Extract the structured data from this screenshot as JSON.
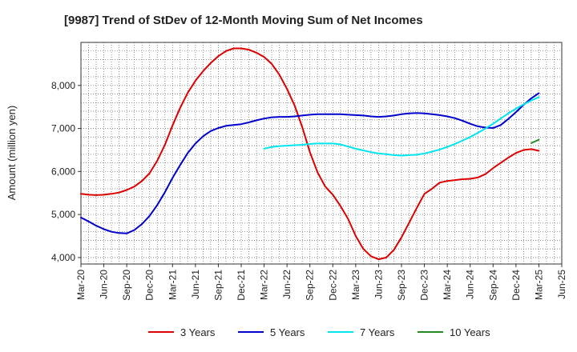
{
  "chart_data": {
    "type": "line",
    "title": "[9987]  Trend of StDev of 12-Month Moving Sum of Net Incomes",
    "xlabel": "",
    "ylabel": "Amount (million yen)",
    "ylim": [
      3850,
      9000
    ],
    "yticks": [
      4000,
      5000,
      6000,
      7000,
      8000
    ],
    "ytick_labels": [
      "4,000",
      "5,000",
      "6,000",
      "7,000",
      "8,000"
    ],
    "xticks": [
      "Mar-20",
      "Jun-20",
      "Sep-20",
      "Dec-20",
      "Mar-21",
      "Jun-21",
      "Sep-21",
      "Dec-21",
      "Mar-22",
      "Jun-22",
      "Sep-22",
      "Dec-22",
      "Mar-23",
      "Jun-23",
      "Sep-23",
      "Dec-23",
      "Mar-24",
      "Jun-24",
      "Sep-24",
      "Dec-24",
      "Mar-25",
      "Jun-25"
    ],
    "grid": true,
    "legend_position": "bottom",
    "series": [
      {
        "name": "3 Years",
        "color": "#dd0000",
        "points": [
          [
            "Mar-20",
            5480
          ],
          [
            "Apr-20",
            5460
          ],
          [
            "May-20",
            5450
          ],
          [
            "Jun-20",
            5460
          ],
          [
            "Jul-20",
            5480
          ],
          [
            "Aug-20",
            5510
          ],
          [
            "Sep-20",
            5570
          ],
          [
            "Oct-20",
            5650
          ],
          [
            "Nov-20",
            5780
          ],
          [
            "Dec-20",
            5960
          ],
          [
            "Jan-21",
            6250
          ],
          [
            "Feb-21",
            6620
          ],
          [
            "Mar-21",
            7070
          ],
          [
            "Apr-21",
            7480
          ],
          [
            "May-21",
            7830
          ],
          [
            "Jun-21",
            8110
          ],
          [
            "Jul-21",
            8330
          ],
          [
            "Aug-21",
            8520
          ],
          [
            "Sep-21",
            8680
          ],
          [
            "Oct-21",
            8800
          ],
          [
            "Nov-21",
            8860
          ],
          [
            "Dec-21",
            8860
          ],
          [
            "Jan-22",
            8830
          ],
          [
            "Feb-22",
            8760
          ],
          [
            "Mar-22",
            8660
          ],
          [
            "Apr-22",
            8500
          ],
          [
            "May-22",
            8250
          ],
          [
            "Jun-22",
            7920
          ],
          [
            "Jul-22",
            7530
          ],
          [
            "Aug-22",
            7030
          ],
          [
            "Sep-22",
            6450
          ],
          [
            "Oct-22",
            5980
          ],
          [
            "Nov-22",
            5650
          ],
          [
            "Dec-22",
            5460
          ],
          [
            "Jan-23",
            5200
          ],
          [
            "Feb-23",
            4900
          ],
          [
            "Mar-23",
            4500
          ],
          [
            "Apr-23",
            4200
          ],
          [
            "May-23",
            4030
          ],
          [
            "Jun-23",
            3960
          ],
          [
            "Jul-23",
            4000
          ],
          [
            "Aug-23",
            4180
          ],
          [
            "Sep-23",
            4470
          ],
          [
            "Oct-23",
            4810
          ],
          [
            "Nov-23",
            5150
          ],
          [
            "Dec-23",
            5480
          ],
          [
            "Jan-24",
            5600
          ],
          [
            "Feb-24",
            5740
          ],
          [
            "Mar-24",
            5780
          ],
          [
            "Apr-24",
            5800
          ],
          [
            "May-24",
            5820
          ],
          [
            "Jun-24",
            5830
          ],
          [
            "Jul-24",
            5860
          ],
          [
            "Aug-24",
            5940
          ],
          [
            "Sep-24",
            6080
          ],
          [
            "Oct-24",
            6200
          ],
          [
            "Nov-24",
            6320
          ],
          [
            "Dec-24",
            6430
          ],
          [
            "Jan-25",
            6500
          ],
          [
            "Feb-25",
            6520
          ],
          [
            "Mar-25",
            6480
          ]
        ]
      },
      {
        "name": "5 Years",
        "color": "#0000cc",
        "points": [
          [
            "Mar-20",
            4930
          ],
          [
            "Apr-20",
            4840
          ],
          [
            "May-20",
            4740
          ],
          [
            "Jun-20",
            4660
          ],
          [
            "Jul-20",
            4600
          ],
          [
            "Aug-20",
            4570
          ],
          [
            "Sep-20",
            4560
          ],
          [
            "Oct-20",
            4640
          ],
          [
            "Nov-20",
            4780
          ],
          [
            "Dec-20",
            4970
          ],
          [
            "Jan-21",
            5220
          ],
          [
            "Feb-21",
            5520
          ],
          [
            "Mar-21",
            5850
          ],
          [
            "Apr-21",
            6150
          ],
          [
            "May-21",
            6430
          ],
          [
            "Jun-21",
            6650
          ],
          [
            "Jul-21",
            6820
          ],
          [
            "Aug-21",
            6940
          ],
          [
            "Sep-21",
            7010
          ],
          [
            "Oct-21",
            7060
          ],
          [
            "Nov-21",
            7080
          ],
          [
            "Dec-21",
            7100
          ],
          [
            "Jan-22",
            7140
          ],
          [
            "Feb-22",
            7190
          ],
          [
            "Mar-22",
            7230
          ],
          [
            "Apr-22",
            7260
          ],
          [
            "May-22",
            7270
          ],
          [
            "Jun-22",
            7270
          ],
          [
            "Jul-22",
            7280
          ],
          [
            "Aug-22",
            7300
          ],
          [
            "Sep-22",
            7320
          ],
          [
            "Oct-22",
            7330
          ],
          [
            "Nov-22",
            7330
          ],
          [
            "Dec-22",
            7330
          ],
          [
            "Jan-23",
            7330
          ],
          [
            "Feb-23",
            7320
          ],
          [
            "Mar-23",
            7310
          ],
          [
            "Apr-23",
            7300
          ],
          [
            "May-23",
            7280
          ],
          [
            "Jun-23",
            7270
          ],
          [
            "Jul-23",
            7280
          ],
          [
            "Aug-23",
            7300
          ],
          [
            "Sep-23",
            7330
          ],
          [
            "Oct-23",
            7350
          ],
          [
            "Nov-23",
            7360
          ],
          [
            "Dec-23",
            7350
          ],
          [
            "Jan-24",
            7330
          ],
          [
            "Feb-24",
            7310
          ],
          [
            "Mar-24",
            7280
          ],
          [
            "Apr-24",
            7240
          ],
          [
            "May-24",
            7180
          ],
          [
            "Jun-24",
            7110
          ],
          [
            "Jul-24",
            7050
          ],
          [
            "Aug-24",
            7020
          ],
          [
            "Sep-24",
            7010
          ],
          [
            "Oct-24",
            7080
          ],
          [
            "Nov-24",
            7220
          ],
          [
            "Dec-24",
            7380
          ],
          [
            "Jan-25",
            7550
          ],
          [
            "Feb-25",
            7700
          ],
          [
            "Mar-25",
            7820
          ]
        ]
      },
      {
        "name": "7 Years",
        "color": "#00e5ee",
        "points": [
          [
            "Mar-22",
            6530
          ],
          [
            "Apr-22",
            6570
          ],
          [
            "May-22",
            6590
          ],
          [
            "Jun-22",
            6600
          ],
          [
            "Jul-22",
            6610
          ],
          [
            "Aug-22",
            6620
          ],
          [
            "Sep-22",
            6640
          ],
          [
            "Oct-22",
            6650
          ],
          [
            "Nov-22",
            6650
          ],
          [
            "Dec-22",
            6650
          ],
          [
            "Jan-23",
            6630
          ],
          [
            "Feb-23",
            6580
          ],
          [
            "Mar-23",
            6530
          ],
          [
            "Apr-23",
            6490
          ],
          [
            "May-23",
            6450
          ],
          [
            "Jun-23",
            6420
          ],
          [
            "Jul-23",
            6400
          ],
          [
            "Aug-23",
            6380
          ],
          [
            "Sep-23",
            6370
          ],
          [
            "Oct-23",
            6380
          ],
          [
            "Nov-23",
            6390
          ],
          [
            "Dec-23",
            6420
          ],
          [
            "Jan-24",
            6460
          ],
          [
            "Feb-24",
            6510
          ],
          [
            "Mar-24",
            6570
          ],
          [
            "Apr-24",
            6640
          ],
          [
            "May-24",
            6720
          ],
          [
            "Jun-24",
            6800
          ],
          [
            "Jul-24",
            6900
          ],
          [
            "Aug-24",
            7000
          ],
          [
            "Sep-24",
            7110
          ],
          [
            "Oct-24",
            7230
          ],
          [
            "Nov-24",
            7350
          ],
          [
            "Dec-24",
            7460
          ],
          [
            "Jan-25",
            7560
          ],
          [
            "Feb-25",
            7650
          ],
          [
            "Mar-25",
            7730
          ]
        ]
      },
      {
        "name": "10 Years",
        "color": "#228b22",
        "points": [
          [
            "Feb-25",
            6660
          ],
          [
            "Mar-25",
            6740
          ]
        ]
      }
    ]
  }
}
